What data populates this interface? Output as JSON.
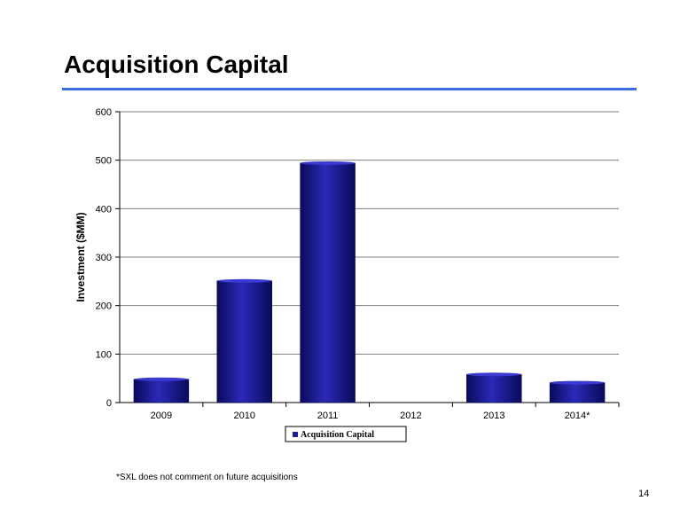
{
  "slide": {
    "title": "Acquisition Capital",
    "footnote": "*SXL does not comment on future acquisitions",
    "page_number": "14"
  },
  "colors": {
    "title_rule": "#3a6fdc",
    "bar_dark": "#0a0a5a",
    "bar_mid": "#1b1b96",
    "bar_light": "#3a3ad0"
  },
  "chart_data": {
    "type": "bar",
    "categories": [
      "2009",
      "2010",
      "2011",
      "2012",
      "2013",
      "2014*"
    ],
    "series": [
      {
        "name": "Acquisition Capital",
        "values": [
          48,
          251,
          494,
          0,
          58,
          41
        ]
      }
    ],
    "ylabel": "Investment ($MM)",
    "xlabel": "",
    "ylim": [
      0,
      600
    ],
    "yticks": [
      0,
      100,
      200,
      300,
      400,
      500,
      600
    ],
    "grid": true,
    "legend_position": "bottom"
  }
}
